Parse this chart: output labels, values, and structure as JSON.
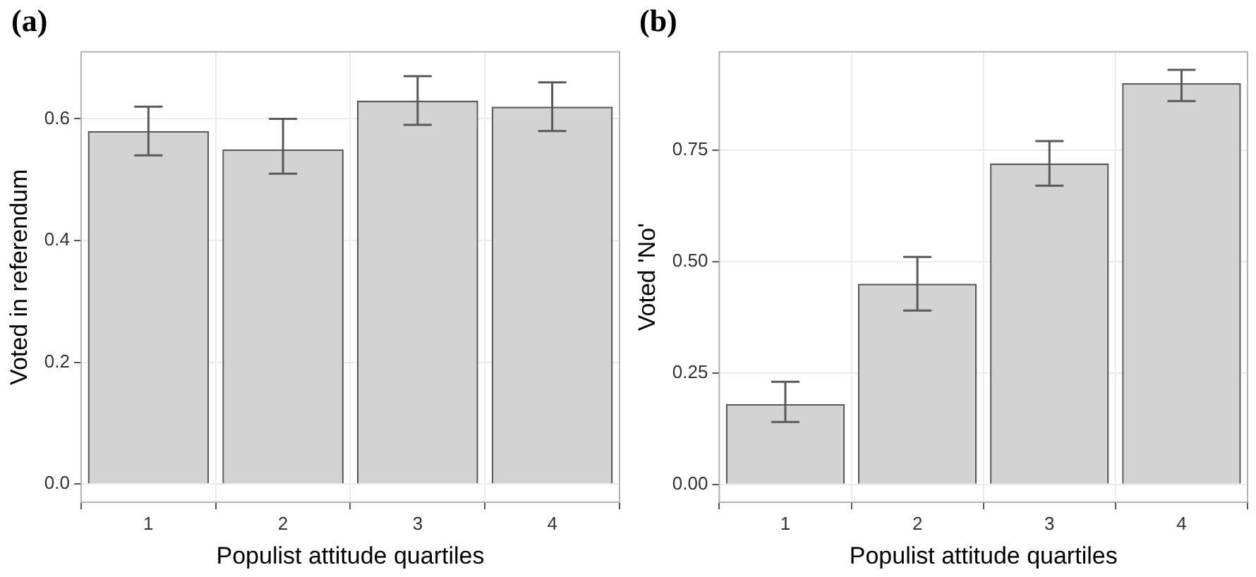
{
  "chart_data": [
    {
      "type": "bar",
      "title": "(a)",
      "xlabel": "Populist attitude quartiles",
      "ylabel": "Voted in referendum",
      "categories": [
        "1",
        "2",
        "3",
        "4"
      ],
      "values": [
        0.58,
        0.55,
        0.63,
        0.62
      ],
      "errors": [
        [
          0.54,
          0.62
        ],
        [
          0.51,
          0.6
        ],
        [
          0.59,
          0.67
        ],
        [
          0.58,
          0.66
        ]
      ],
      "color": "#d3d3d3",
      "ylim": [
        -0.03,
        0.71
      ],
      "yticks": [
        {
          "value": 0,
          "label": "0.0"
        },
        {
          "value": 0.2,
          "label": "0.2"
        },
        {
          "value": 0.4,
          "label": "0.4"
        },
        {
          "value": 0.6,
          "label": "0.6"
        }
      ],
      "grid": true
    },
    {
      "type": "bar",
      "title": "(b)",
      "xlabel": "Populist attitude quartiles",
      "ylabel": "Voted 'No'",
      "categories": [
        "1",
        "2",
        "3",
        "4"
      ],
      "values": [
        0.18,
        0.45,
        0.72,
        0.9
      ],
      "errors": [
        [
          0.14,
          0.23
        ],
        [
          0.39,
          0.51
        ],
        [
          0.67,
          0.77
        ],
        [
          0.86,
          0.93
        ]
      ],
      "color": "#d3d3d3",
      "ylim": [
        -0.04,
        0.97
      ],
      "yticks": [
        {
          "value": 0,
          "label": "0.00"
        },
        {
          "value": 0.25,
          "label": "0.25"
        },
        {
          "value": 0.5,
          "label": "0.50"
        },
        {
          "value": 0.75,
          "label": "0.75"
        }
      ],
      "grid": true
    }
  ]
}
